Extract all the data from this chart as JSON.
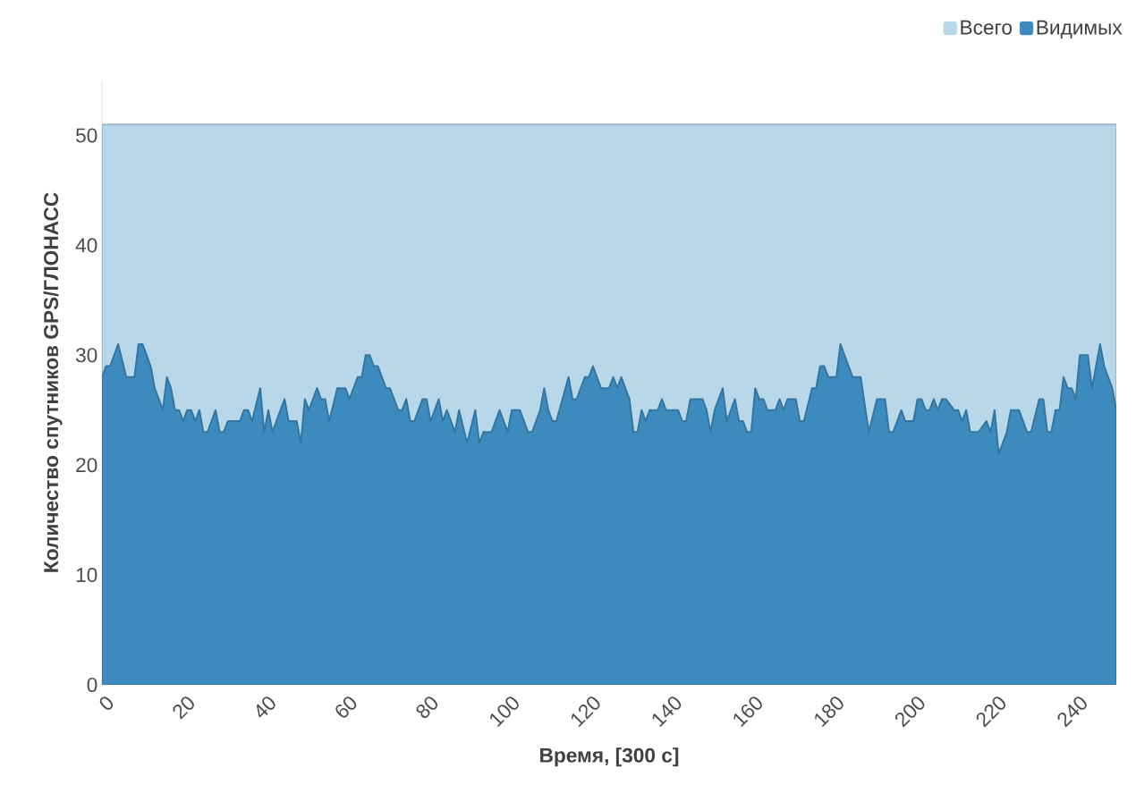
{
  "chart_data": {
    "type": "area",
    "xlabel": "Время, [300 с]",
    "ylabel": "Количество спутников GPS/ГЛОНАСС",
    "xlim": [
      0,
      250
    ],
    "ylim": [
      0,
      55
    ],
    "xticks": [
      0,
      20,
      40,
      60,
      80,
      100,
      120,
      140,
      160,
      180,
      200,
      220,
      240
    ],
    "yticks": [
      0,
      10,
      20,
      30,
      40,
      50
    ],
    "grid": "y",
    "legend": "top right",
    "series": [
      {
        "name": "Всего",
        "color": "#b8d8e9",
        "x": [
          0,
          250
        ],
        "values": [
          51,
          51
        ]
      },
      {
        "name": "Видимых",
        "color": "#3d8bbe",
        "x": [
          0,
          1,
          2,
          4,
          6,
          8,
          9,
          10,
          12,
          13,
          15,
          16,
          17,
          18,
          19,
          20,
          21,
          22,
          23,
          24,
          25,
          26,
          28,
          29,
          30,
          31,
          34,
          35,
          36,
          37,
          39,
          40,
          41,
          42,
          45,
          46,
          48,
          49,
          50,
          51,
          53,
          54,
          55,
          56,
          58,
          60,
          61,
          63,
          64,
          65,
          66,
          67,
          68,
          70,
          71,
          73,
          74,
          75,
          76,
          77,
          79,
          80,
          81,
          83,
          84,
          85,
          87,
          88,
          90,
          92,
          93,
          94,
          96,
          98,
          100,
          101,
          103,
          105,
          106,
          108,
          109,
          110,
          111,
          112,
          115,
          116,
          117,
          119,
          120,
          121,
          123,
          125,
          126,
          127,
          128,
          130,
          131,
          132,
          133,
          134,
          135,
          137,
          138,
          139,
          142,
          143,
          144,
          145,
          148,
          149,
          150,
          151,
          153,
          154,
          156,
          157,
          158,
          159,
          160,
          161,
          162,
          163,
          164,
          166,
          167,
          168,
          169,
          171,
          172,
          173,
          175,
          176,
          177,
          178,
          179,
          181,
          182,
          185,
          187,
          189,
          191,
          193,
          194,
          195,
          197,
          198,
          200,
          201,
          202,
          203,
          204,
          205,
          206,
          207,
          208,
          210,
          211,
          212,
          213,
          214,
          216,
          218,
          219,
          220,
          221,
          223,
          224,
          226,
          228,
          229,
          231,
          232,
          233,
          234,
          235,
          236,
          237,
          238,
          239,
          240,
          241,
          243,
          244,
          246,
          247,
          249,
          250
        ],
        "values": [
          28,
          29,
          29,
          31,
          28,
          28,
          31,
          31,
          29,
          27,
          25,
          28,
          27,
          25,
          25,
          24,
          25,
          25,
          24,
          25,
          23,
          23,
          25,
          23,
          23,
          24,
          24,
          25,
          25,
          24,
          27,
          23,
          25,
          23,
          26,
          24,
          24,
          22,
          26,
          25,
          27,
          26,
          26,
          24,
          27,
          27,
          26,
          28,
          28,
          30,
          30,
          29,
          29,
          27,
          27,
          25,
          25,
          26,
          24,
          24,
          26,
          26,
          24,
          26,
          24,
          25,
          23,
          25,
          22,
          25,
          22,
          23,
          23,
          25,
          23,
          25,
          25,
          23,
          23,
          25,
          27,
          25,
          24,
          24,
          28,
          26,
          26,
          28,
          28,
          29,
          27,
          27,
          28,
          27,
          28,
          26,
          23,
          23,
          25,
          24,
          25,
          25,
          26,
          25,
          25,
          24,
          24,
          26,
          26,
          25,
          23,
          25,
          27,
          24,
          26,
          24,
          24,
          23,
          23,
          27,
          26,
          26,
          25,
          25,
          26,
          25,
          26,
          26,
          24,
          24,
          27,
          27,
          29,
          29,
          28,
          28,
          31,
          28,
          28,
          23,
          26,
          26,
          23,
          23,
          25,
          24,
          24,
          26,
          26,
          25,
          25,
          26,
          25,
          26,
          26,
          25,
          25,
          24,
          25,
          23,
          23,
          24,
          23,
          25,
          21,
          23,
          25,
          25,
          23,
          23,
          26,
          26,
          23,
          23,
          25,
          25,
          28,
          27,
          27,
          26,
          30,
          30,
          27,
          31,
          29,
          27,
          25
        ]
      }
    ]
  }
}
